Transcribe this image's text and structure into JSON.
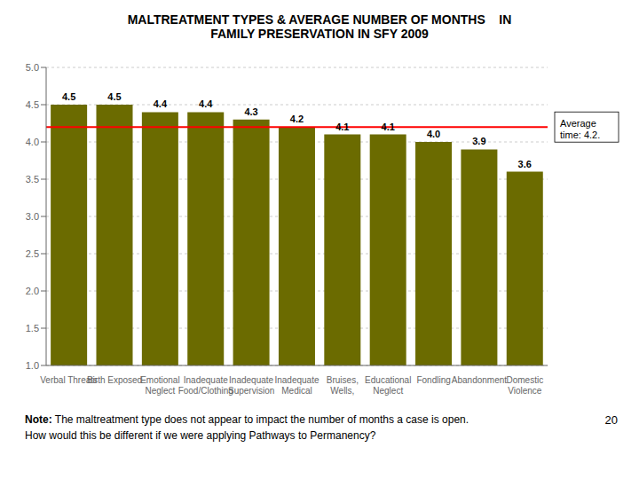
{
  "chart_data": {
    "type": "bar",
    "title": "MALTREATMENT TYPES & AVERAGE NUMBER OF MONTHS    IN\nFAMILY PRESERVATION IN SFY 2009",
    "categories": [
      "Verbal Threats",
      "Birth Exposed",
      "Emotional\nNeglect",
      "Inadequate\nFood/Clothing",
      "Inadequate\nSupervision",
      "Inadequate\nMedical",
      "Bruises,\nWells,",
      "Educational\nNeglect",
      "Fondling",
      "Abandonment",
      "Domestic\nViolence"
    ],
    "values": [
      4.5,
      4.5,
      4.4,
      4.4,
      4.3,
      4.2,
      4.1,
      4.1,
      4.0,
      3.9,
      3.6
    ],
    "value_labels": [
      "4.5",
      "4.5",
      "4.4",
      "4.4",
      "4.3",
      "4.2",
      "4.1",
      "4.1",
      "4.0",
      "3.9",
      "3.6"
    ],
    "data_labels": true,
    "color": "#6b6b00",
    "ylim": [
      1.0,
      5.0
    ],
    "yticks": [
      {
        "value": 1,
        "label": "1.0"
      },
      1.5,
      {
        "value": 2,
        "label": "2.0"
      },
      2.5,
      {
        "value": 3,
        "label": "3.0"
      },
      3.5,
      {
        "value": 4,
        "label": "4.0"
      },
      4.5,
      {
        "value": 5,
        "label": "5.0"
      }
    ],
    "grid": true,
    "reference_lines": [
      {
        "value": 4.2,
        "label": "Average\ntime: 4.2.",
        "color": "red"
      }
    ],
    "note_label": "Note:",
    "notes": [
      "The maltreatment type does not appear to impact the number of months a case is open.",
      "How would this be different if we were applying Pathways to Permanency?"
    ],
    "page_number": "20"
  }
}
